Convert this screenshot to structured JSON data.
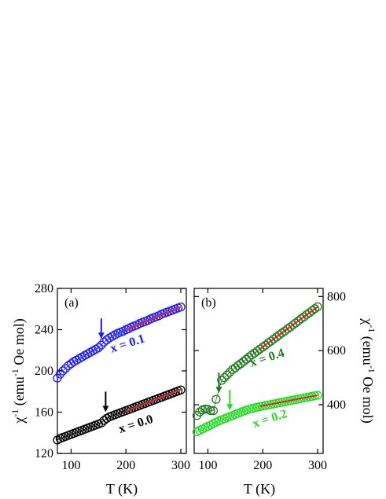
{
  "chart_data": [
    {
      "type": "scatter",
      "panel_label": "(a)",
      "xlabel": "T (K)",
      "ylabel_main": "χ",
      "ylabel_sup": "-1",
      "ylabel_rest": "(emu",
      "ylabel_sup2": "-1",
      "ylabel_end": "Oe mol)",
      "xlim": [
        75,
        310
      ],
      "ylim": [
        120,
        280
      ],
      "xticks": [
        "100",
        "200",
        "300"
      ],
      "xtick_values": [
        100,
        200,
        300
      ],
      "yticks": [
        "120",
        "160",
        "200",
        "240",
        "280"
      ],
      "ytick_values": [
        120,
        160,
        200,
        240,
        280
      ],
      "y_axis_side": "left",
      "series": [
        {
          "name": "x = 0.1",
          "color": "#1a1aff",
          "points": [
            [
              75,
              193
            ],
            [
              80,
              197
            ],
            [
              85,
              200
            ],
            [
              90,
              202.5
            ],
            [
              95,
              205
            ],
            [
              100,
              207
            ],
            [
              105,
              209
            ],
            [
              110,
              210.5
            ],
            [
              115,
              212
            ],
            [
              120,
              213.5
            ],
            [
              125,
              215
            ],
            [
              130,
              216.5
            ],
            [
              135,
              218
            ],
            [
              140,
              219.5
            ],
            [
              145,
              221
            ],
            [
              150,
              222.5
            ],
            [
              155,
              225
            ],
            [
              160,
              228
            ],
            [
              165,
              230
            ],
            [
              170,
              232
            ],
            [
              175,
              233.5
            ],
            [
              180,
              235
            ],
            [
              185,
              236.5
            ],
            [
              190,
              237.5
            ],
            [
              195,
              238.5
            ],
            [
              200,
              240
            ],
            [
              205,
              241
            ],
            [
              210,
              242.5
            ],
            [
              215,
              243.5
            ],
            [
              220,
              244.5
            ],
            [
              225,
              246
            ],
            [
              230,
              247
            ],
            [
              235,
              248
            ],
            [
              240,
              249
            ],
            [
              245,
              250.5
            ],
            [
              250,
              251.5
            ],
            [
              255,
              252.5
            ],
            [
              260,
              253.5
            ],
            [
              265,
              255
            ],
            [
              270,
              256
            ],
            [
              275,
              257
            ],
            [
              280,
              258
            ],
            [
              285,
              259
            ],
            [
              290,
              260
            ],
            [
              295,
              261
            ],
            [
              300,
              262
            ]
          ],
          "fit": [
            [
              200,
              239.5
            ],
            [
              300,
              262
            ]
          ],
          "arrow_x": 155,
          "label_at": [
            205,
            223
          ]
        },
        {
          "name": "x = 0.0",
          "color": "#000000",
          "points": [
            [
              75,
              133
            ],
            [
              80,
              134.5
            ],
            [
              85,
              135.5
            ],
            [
              90,
              136.5
            ],
            [
              95,
              137.5
            ],
            [
              100,
              138.5
            ],
            [
              105,
              139.5
            ],
            [
              110,
              140.5
            ],
            [
              115,
              141.5
            ],
            [
              120,
              142.5
            ],
            [
              125,
              143.5
            ],
            [
              130,
              144.5
            ],
            [
              135,
              145.5
            ],
            [
              140,
              146.5
            ],
            [
              145,
              147.5
            ],
            [
              150,
              148.5
            ],
            [
              155,
              149.5
            ],
            [
              160,
              152
            ],
            [
              165,
              154
            ],
            [
              170,
              155.5
            ],
            [
              175,
              156.5
            ],
            [
              180,
              157.5
            ],
            [
              185,
              158.5
            ],
            [
              190,
              159.5
            ],
            [
              195,
              160.5
            ],
            [
              200,
              161.5
            ],
            [
              205,
              162.5
            ],
            [
              210,
              163.5
            ],
            [
              215,
              164.5
            ],
            [
              220,
              165.5
            ],
            [
              225,
              166.5
            ],
            [
              230,
              167.5
            ],
            [
              235,
              168.5
            ],
            [
              240,
              169.5
            ],
            [
              245,
              170.5
            ],
            [
              250,
              171.5
            ],
            [
              255,
              172.5
            ],
            [
              260,
              173.5
            ],
            [
              265,
              174.5
            ],
            [
              270,
              175.5
            ],
            [
              275,
              176.5
            ],
            [
              280,
              177.5
            ],
            [
              285,
              178.5
            ],
            [
              290,
              179.5
            ],
            [
              295,
              180.5
            ],
            [
              300,
              181.5
            ]
          ],
          "fit": [
            [
              200,
              161
            ],
            [
              300,
              182
            ]
          ],
          "arrow_x": 163,
          "label_at": [
            220,
            145
          ]
        }
      ]
    },
    {
      "type": "scatter",
      "panel_label": "(b)",
      "xlabel": "T (K)",
      "ylabel_main": "χ",
      "ylabel_sup": "-1",
      "ylabel_rest": "(emu",
      "ylabel_sup2": "-1",
      "ylabel_end": "Oe mol)",
      "xlim": [
        75,
        310
      ],
      "ylim": [
        220,
        830
      ],
      "xticks": [
        "100",
        "200",
        "300"
      ],
      "xtick_values": [
        100,
        200,
        300
      ],
      "yticks": [
        "400",
        "600",
        "800"
      ],
      "ytick_values": [
        400,
        600,
        800
      ],
      "y_axis_side": "right",
      "series": [
        {
          "name": "x = 0.4",
          "color": "#1e7a1e",
          "points": [
            [
              80,
              360
            ],
            [
              85,
              373
            ],
            [
              90,
              381
            ],
            [
              95,
              384
            ],
            [
              100,
              383
            ],
            [
              105,
              378
            ],
            [
              110,
              378
            ],
            [
              115,
              420
            ],
            [
              125,
              490
            ],
            [
              130,
              500
            ],
            [
              135,
              510
            ],
            [
              140,
              520
            ],
            [
              145,
              530
            ],
            [
              150,
              537
            ],
            [
              155,
              545
            ],
            [
              160,
              552
            ],
            [
              165,
              560
            ],
            [
              170,
              568
            ],
            [
              175,
              576
            ],
            [
              180,
              584
            ],
            [
              185,
              591
            ],
            [
              190,
              598
            ],
            [
              195,
              606
            ],
            [
              200,
              613
            ],
            [
              205,
              620
            ],
            [
              210,
              628
            ],
            [
              215,
              635
            ],
            [
              220,
              643
            ],
            [
              225,
              650
            ],
            [
              230,
              658
            ],
            [
              235,
              665
            ],
            [
              240,
              672
            ],
            [
              245,
              680
            ],
            [
              250,
              687
            ],
            [
              255,
              695
            ],
            [
              260,
              702
            ],
            [
              265,
              710
            ],
            [
              270,
              718
            ],
            [
              275,
              725
            ],
            [
              280,
              733
            ],
            [
              285,
              740
            ],
            [
              290,
              748
            ],
            [
              295,
              755
            ],
            [
              300,
              762
            ]
          ],
          "fit": [
            [
              195,
              606
            ],
            [
              300,
              762
            ]
          ],
          "arrow_x": 120,
          "label_at": [
            210,
            560
          ]
        },
        {
          "name": "x = 0.2",
          "color": "#22dd22",
          "points": [
            [
              80,
              300
            ],
            [
              85,
              305
            ],
            [
              90,
              310
            ],
            [
              95,
              315
            ],
            [
              100,
              320
            ],
            [
              105,
              325
            ],
            [
              110,
              330
            ],
            [
              115,
              335
            ],
            [
              120,
              340
            ],
            [
              125,
              344
            ],
            [
              130,
              348
            ],
            [
              135,
              352
            ],
            [
              140,
              356
            ],
            [
              145,
              360
            ],
            [
              150,
              364
            ],
            [
              155,
              368
            ],
            [
              160,
              372
            ],
            [
              165,
              376
            ],
            [
              170,
              380
            ],
            [
              175,
              383
            ],
            [
              180,
              386
            ],
            [
              185,
              388
            ],
            [
              190,
              391
            ],
            [
              195,
              393
            ],
            [
              200,
              395
            ],
            [
              205,
              397
            ],
            [
              210,
              399
            ],
            [
              215,
              401
            ],
            [
              220,
              403
            ],
            [
              225,
              405
            ],
            [
              230,
              407
            ],
            [
              235,
              409
            ],
            [
              240,
              411
            ],
            [
              245,
              413
            ],
            [
              250,
              415
            ],
            [
              255,
              417
            ],
            [
              260,
              419
            ],
            [
              265,
              421
            ],
            [
              270,
              423
            ],
            [
              275,
              425
            ],
            [
              280,
              427
            ],
            [
              285,
              429
            ],
            [
              290,
              431
            ],
            [
              295,
              433
            ],
            [
              300,
              435
            ]
          ],
          "fit": [
            [
              195,
              394
            ],
            [
              300,
              435
            ]
          ],
          "arrow_x": 140,
          "label_at": [
            215,
            335
          ]
        }
      ]
    }
  ]
}
